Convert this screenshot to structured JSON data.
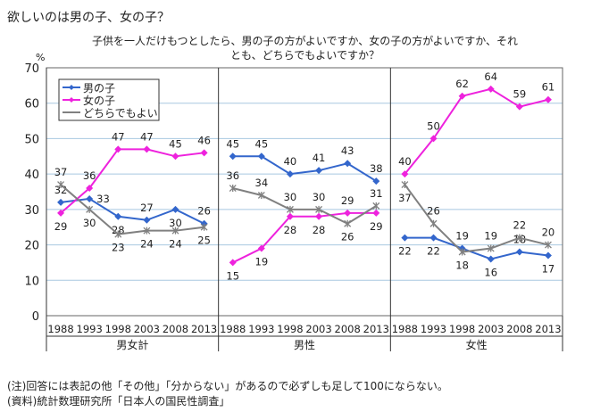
{
  "title": "欲しいのは男の子、女の子？",
  "notes": [
    "(注)回答には表記の他「その他」「分からない」があるので必ずしも足して100にならない。",
    "(資料)統計数理研究所「日本人の国民性調査」"
  ],
  "chart_data": {
    "type": "line",
    "title_line1": "子供を一人だけもつとしたら、男の子の方がよいですか、女の子の方がよいですか、それ",
    "title_line2": "とも、どちらでもよいですか？",
    "ylabel": "%",
    "ylim": [
      0,
      70
    ],
    "yticks": [
      0,
      10,
      20,
      30,
      40,
      50,
      60,
      70
    ],
    "legend_position": "top-left",
    "categories": [
      "1988",
      "1993",
      "1998",
      "2003",
      "2008",
      "2013"
    ],
    "groups": [
      {
        "name": "男女計",
        "series": [
          {
            "name": "男の子",
            "color": "#3366cc",
            "marker": "diamond",
            "values": [
              32,
              33,
              28,
              27,
              30,
              26
            ]
          },
          {
            "name": "女の子",
            "color": "#ee22dd",
            "marker": "diamond",
            "values": [
              29,
              36,
              47,
              47,
              45,
              46
            ]
          },
          {
            "name": "どちらでもよい",
            "color": "#808080",
            "marker": "star",
            "values": [
              37,
              30,
              23,
              24,
              24,
              25
            ]
          }
        ]
      },
      {
        "name": "男性",
        "series": [
          {
            "name": "男の子",
            "color": "#3366cc",
            "marker": "diamond",
            "values": [
              45,
              45,
              40,
              41,
              43,
              38
            ]
          },
          {
            "name": "女の子",
            "color": "#ee22dd",
            "marker": "diamond",
            "values": [
              15,
              19,
              28,
              28,
              29,
              29
            ]
          },
          {
            "name": "どちらでもよい",
            "color": "#808080",
            "marker": "star",
            "values": [
              36,
              34,
              30,
              30,
              26,
              31
            ]
          }
        ]
      },
      {
        "name": "女性",
        "series": [
          {
            "name": "男の子",
            "color": "#3366cc",
            "marker": "diamond",
            "values": [
              22,
              22,
              19,
              16,
              18,
              17
            ]
          },
          {
            "name": "女の子",
            "color": "#ee22dd",
            "marker": "diamond",
            "values": [
              40,
              50,
              62,
              64,
              59,
              61
            ]
          },
          {
            "name": "どちらでもよい",
            "color": "#808080",
            "marker": "star",
            "values": [
              37,
              26,
              18,
              19,
              22,
              20
            ]
          }
        ]
      }
    ],
    "label_side": [
      [
        [
          -1,
          1,
          1,
          1,
          1,
          1
        ],
        [
          1,
          -1,
          -1,
          -1,
          -1,
          -1
        ],
        [
          -1,
          1,
          1,
          1,
          1,
          1
        ]
      ],
      [
        [
          -1,
          -1,
          -1,
          -1,
          -1,
          -1
        ],
        [
          1,
          1,
          1,
          1,
          -1,
          1
        ],
        [
          -1,
          -1,
          -1,
          -1,
          1,
          -1
        ]
      ],
      [
        [
          1,
          1,
          -1,
          1,
          -1,
          1
        ],
        [
          -1,
          -1,
          -1,
          -1,
          -1,
          -1
        ],
        [
          1,
          -1,
          1,
          -1,
          -1,
          -1
        ]
      ]
    ]
  }
}
